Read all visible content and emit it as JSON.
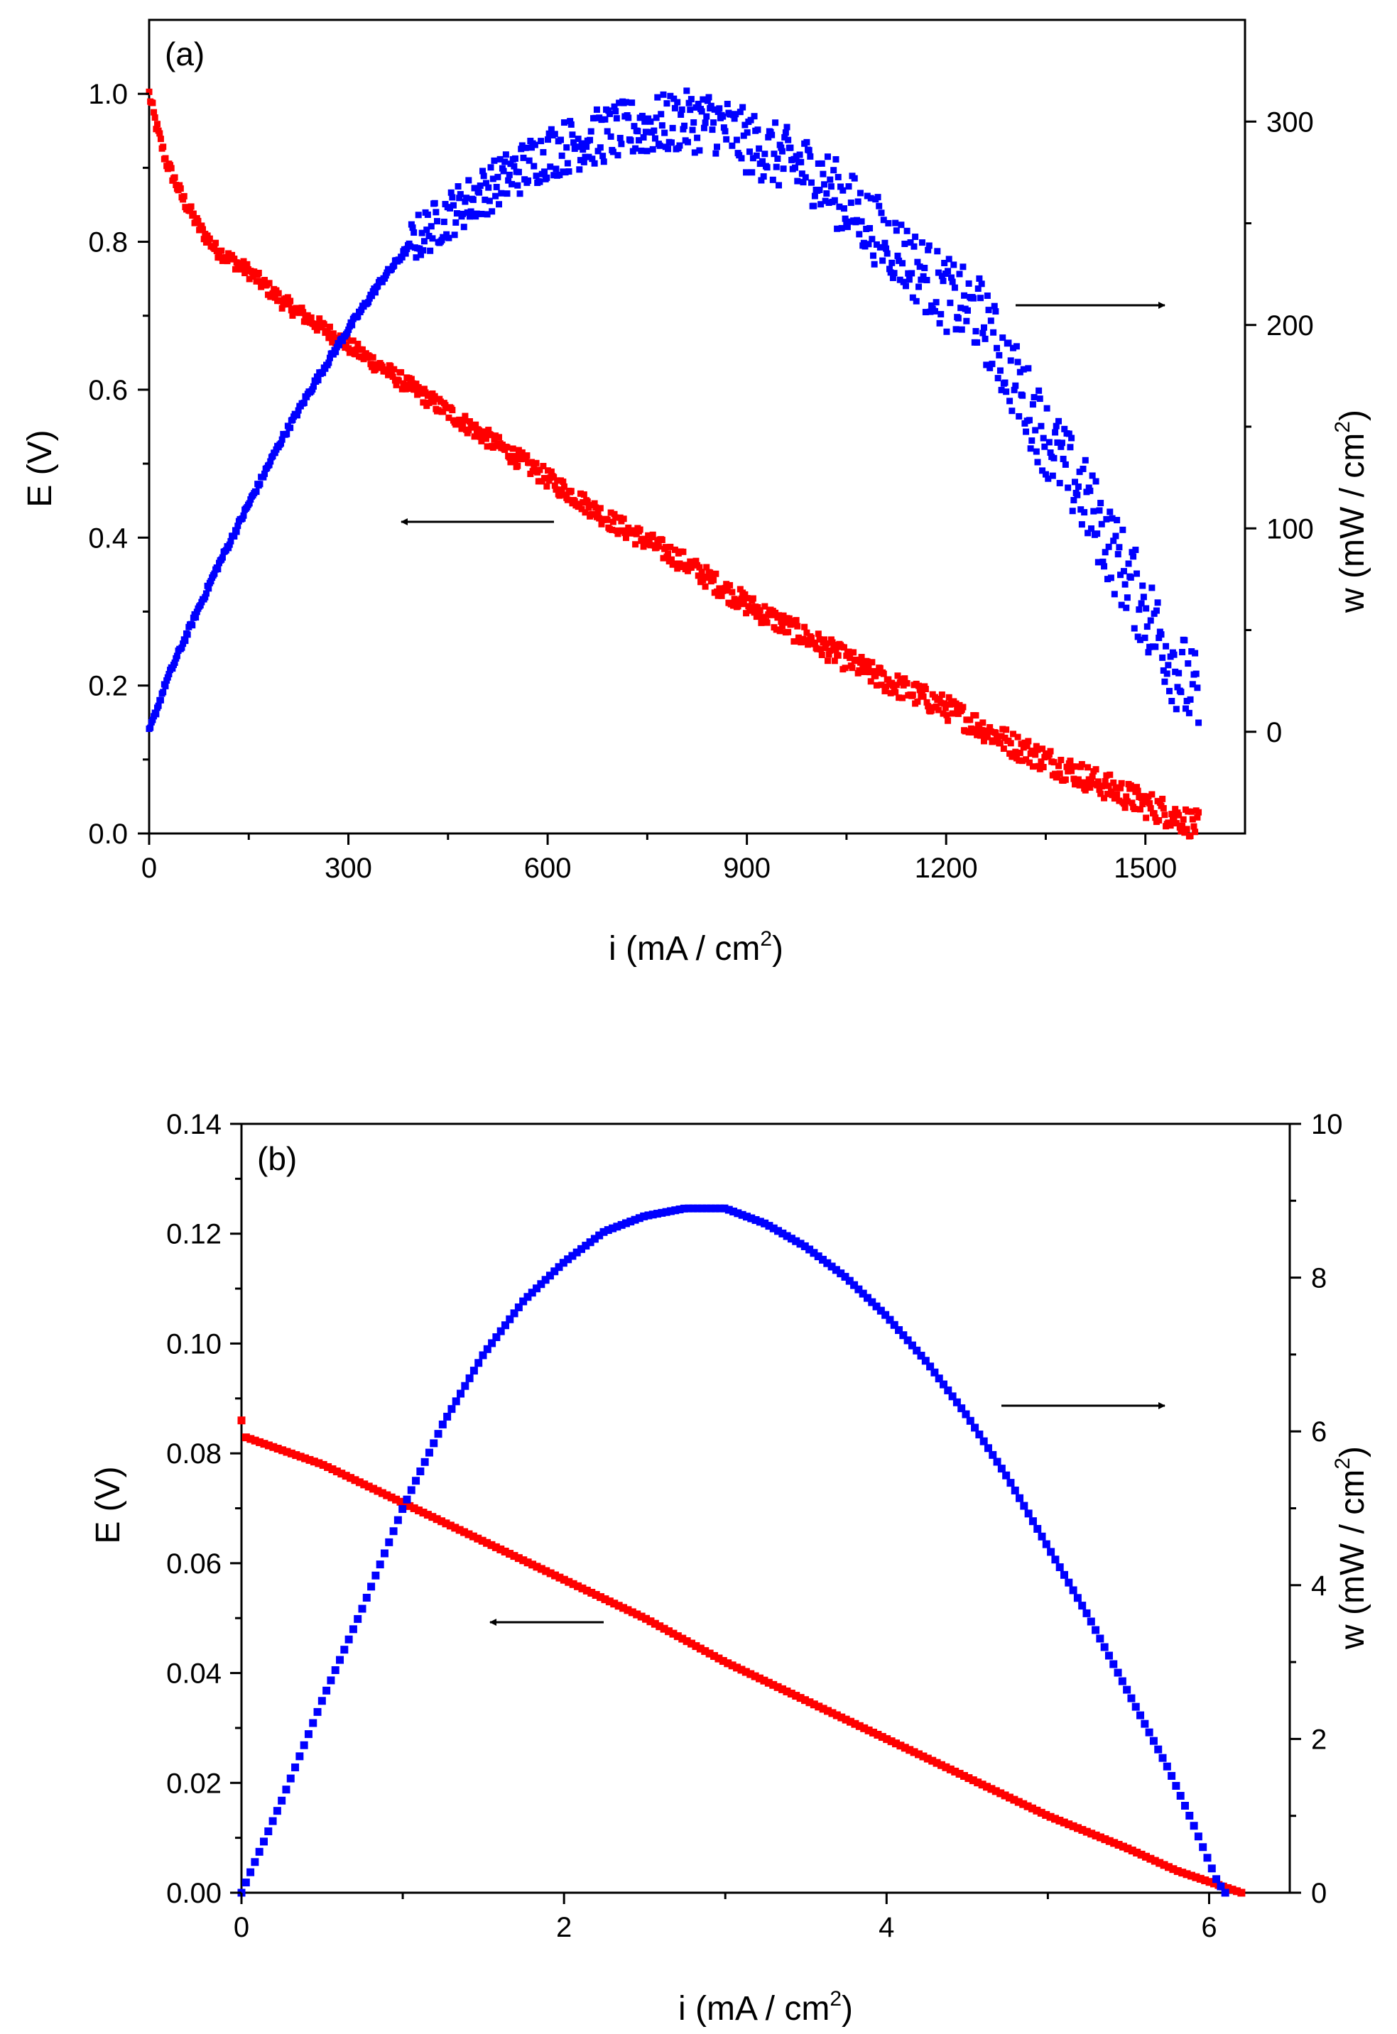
{
  "chart_data": [
    {
      "panel": "(a)",
      "type": "scatter",
      "xlabel": "i (mA / cm",
      "xlabel_sup": "2",
      "xlabel_end": ")",
      "ylabel": "E (V)",
      "y2label": "w (mW / cm",
      "y2label_sup": "2",
      "y2label_end": ")",
      "xlim": [
        0,
        1650
      ],
      "ylim": [
        0,
        1.1
      ],
      "y2lim": [
        -50,
        350
      ],
      "xticks": [
        "0",
        "300",
        "600",
        "900",
        "1200",
        "1500"
      ],
      "xtick_values": [
        0,
        300,
        600,
        900,
        1200,
        1500
      ],
      "yticks": [
        "0.0",
        "0.2",
        "0.4",
        "0.6",
        "0.8",
        "1.0"
      ],
      "ytick_values": [
        0,
        0.2,
        0.4,
        0.6,
        0.8,
        1.0
      ],
      "y2ticks": [
        "0",
        "100",
        "200",
        "300"
      ],
      "y2tick_values": [
        0,
        100,
        200,
        300
      ],
      "series": [
        {
          "name": "E",
          "axis": "left",
          "color": "#ff0000",
          "x": [
            0,
            10,
            25,
            50,
            75,
            100,
            150,
            200,
            250,
            300,
            350,
            400,
            450,
            500,
            600,
            700,
            800,
            900,
            1000,
            1100,
            1200,
            1300,
            1400,
            1500,
            1580
          ],
          "y": [
            1.0,
            0.96,
            0.91,
            0.86,
            0.82,
            0.79,
            0.76,
            0.72,
            0.69,
            0.66,
            0.63,
            0.6,
            0.57,
            0.54,
            0.48,
            0.42,
            0.37,
            0.31,
            0.26,
            0.21,
            0.17,
            0.12,
            0.08,
            0.04,
            0.01
          ]
        },
        {
          "name": "w",
          "axis": "right",
          "color": "#0000ff",
          "x": [
            0,
            25,
            50,
            100,
            150,
            200,
            250,
            300,
            350,
            400,
            450,
            500,
            600,
            700,
            800,
            850,
            900,
            1000,
            1100,
            1200,
            1250,
            1300,
            1350,
            1400,
            1450,
            1500,
            1550,
            1580
          ],
          "y": [
            0,
            24,
            43,
            79,
            112,
            144,
            172,
            198,
            222,
            242,
            254,
            265,
            285,
            295,
            300,
            300,
            290,
            275,
            245,
            215,
            205,
            175,
            145,
            120,
            90,
            60,
            30,
            15
          ]
        }
      ],
      "annotations": [
        {
          "text": "arrow pointing right toward w axis"
        },
        {
          "text": "arrow pointing left toward E axis"
        }
      ]
    },
    {
      "panel": "(b)",
      "type": "scatter",
      "xlabel": "i (mA / cm",
      "xlabel_sup": "2",
      "xlabel_end": ")",
      "ylabel": "E (V)",
      "y2label": "w (mW / cm",
      "y2label_sup": "2",
      "y2label_end": ")",
      "xlim": [
        0,
        6.5
      ],
      "ylim": [
        0,
        0.14
      ],
      "y2lim": [
        0,
        10
      ],
      "xticks": [
        "0",
        "2",
        "4",
        "6"
      ],
      "xtick_values": [
        0,
        2,
        4,
        6
      ],
      "yticks": [
        "0.00",
        "0.02",
        "0.04",
        "0.06",
        "0.08",
        "0.10",
        "0.12",
        "0.14"
      ],
      "ytick_values": [
        0,
        0.02,
        0.04,
        0.06,
        0.08,
        0.1,
        0.12,
        0.14
      ],
      "y2ticks": [
        "0",
        "2",
        "4",
        "6",
        "8",
        "10"
      ],
      "y2tick_values": [
        0,
        2,
        4,
        6,
        8,
        10
      ],
      "series": [
        {
          "name": "E",
          "axis": "left",
          "color": "#ff0000",
          "x": [
            0,
            0.02,
            0.5,
            1.0,
            1.5,
            2.0,
            2.5,
            3.0,
            3.5,
            4.0,
            4.5,
            5.0,
            5.5,
            5.8,
            6.0,
            6.1,
            6.2
          ],
          "y": [
            0.086,
            0.083,
            0.078,
            0.071,
            0.064,
            0.057,
            0.05,
            0.042,
            0.035,
            0.028,
            0.021,
            0.014,
            0.008,
            0.004,
            0.002,
            0.001,
            0.0
          ]
        },
        {
          "name": "w",
          "axis": "right",
          "color": "#0000ff",
          "x": [
            0,
            0.25,
            0.5,
            0.75,
            1.0,
            1.25,
            1.5,
            1.75,
            2.0,
            2.25,
            2.5,
            2.75,
            3.0,
            3.25,
            3.5,
            3.75,
            4.0,
            4.25,
            4.5,
            4.75,
            5.0,
            5.25,
            5.5,
            5.75,
            5.9,
            6.0,
            6.05,
            6.1
          ],
          "y": [
            0,
            1.2,
            2.5,
            3.7,
            5.0,
            6.1,
            7.0,
            7.7,
            8.2,
            8.6,
            8.8,
            8.9,
            8.9,
            8.7,
            8.4,
            8.0,
            7.5,
            6.9,
            6.2,
            5.4,
            4.5,
            3.6,
            2.6,
            1.6,
            0.9,
            0.4,
            0.15,
            0.0
          ]
        }
      ],
      "annotations": [
        {
          "text": "arrow pointing right toward w axis"
        },
        {
          "text": "arrow pointing left toward E axis"
        }
      ]
    }
  ]
}
